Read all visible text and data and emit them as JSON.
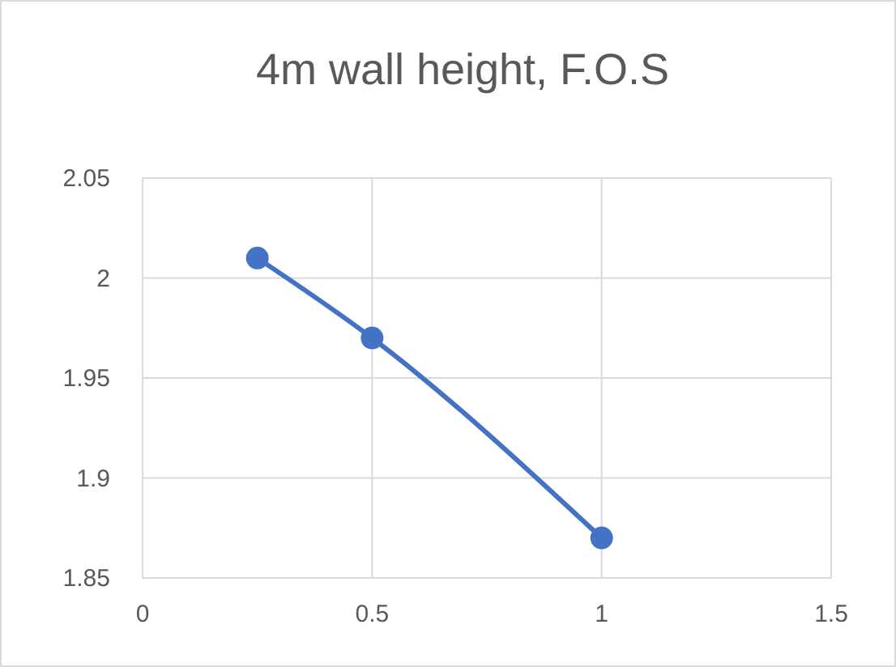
{
  "chart_data": {
    "type": "line",
    "title": "4m wall height, F.O.S",
    "x": [
      0.25,
      0.5,
      1
    ],
    "series": [
      {
        "color": "#4472c4",
        "values": [
          2.01,
          1.97,
          1.87
        ]
      }
    ],
    "xlim": [
      0,
      1.5
    ],
    "xticks": [
      0,
      0.5,
      1,
      1.5
    ],
    "ylim": [
      1.85,
      2.05
    ],
    "yticks": [
      1.85,
      1.9,
      1.95,
      2,
      2.05
    ],
    "grid": true,
    "marker": "circle",
    "line_style": "solid"
  }
}
